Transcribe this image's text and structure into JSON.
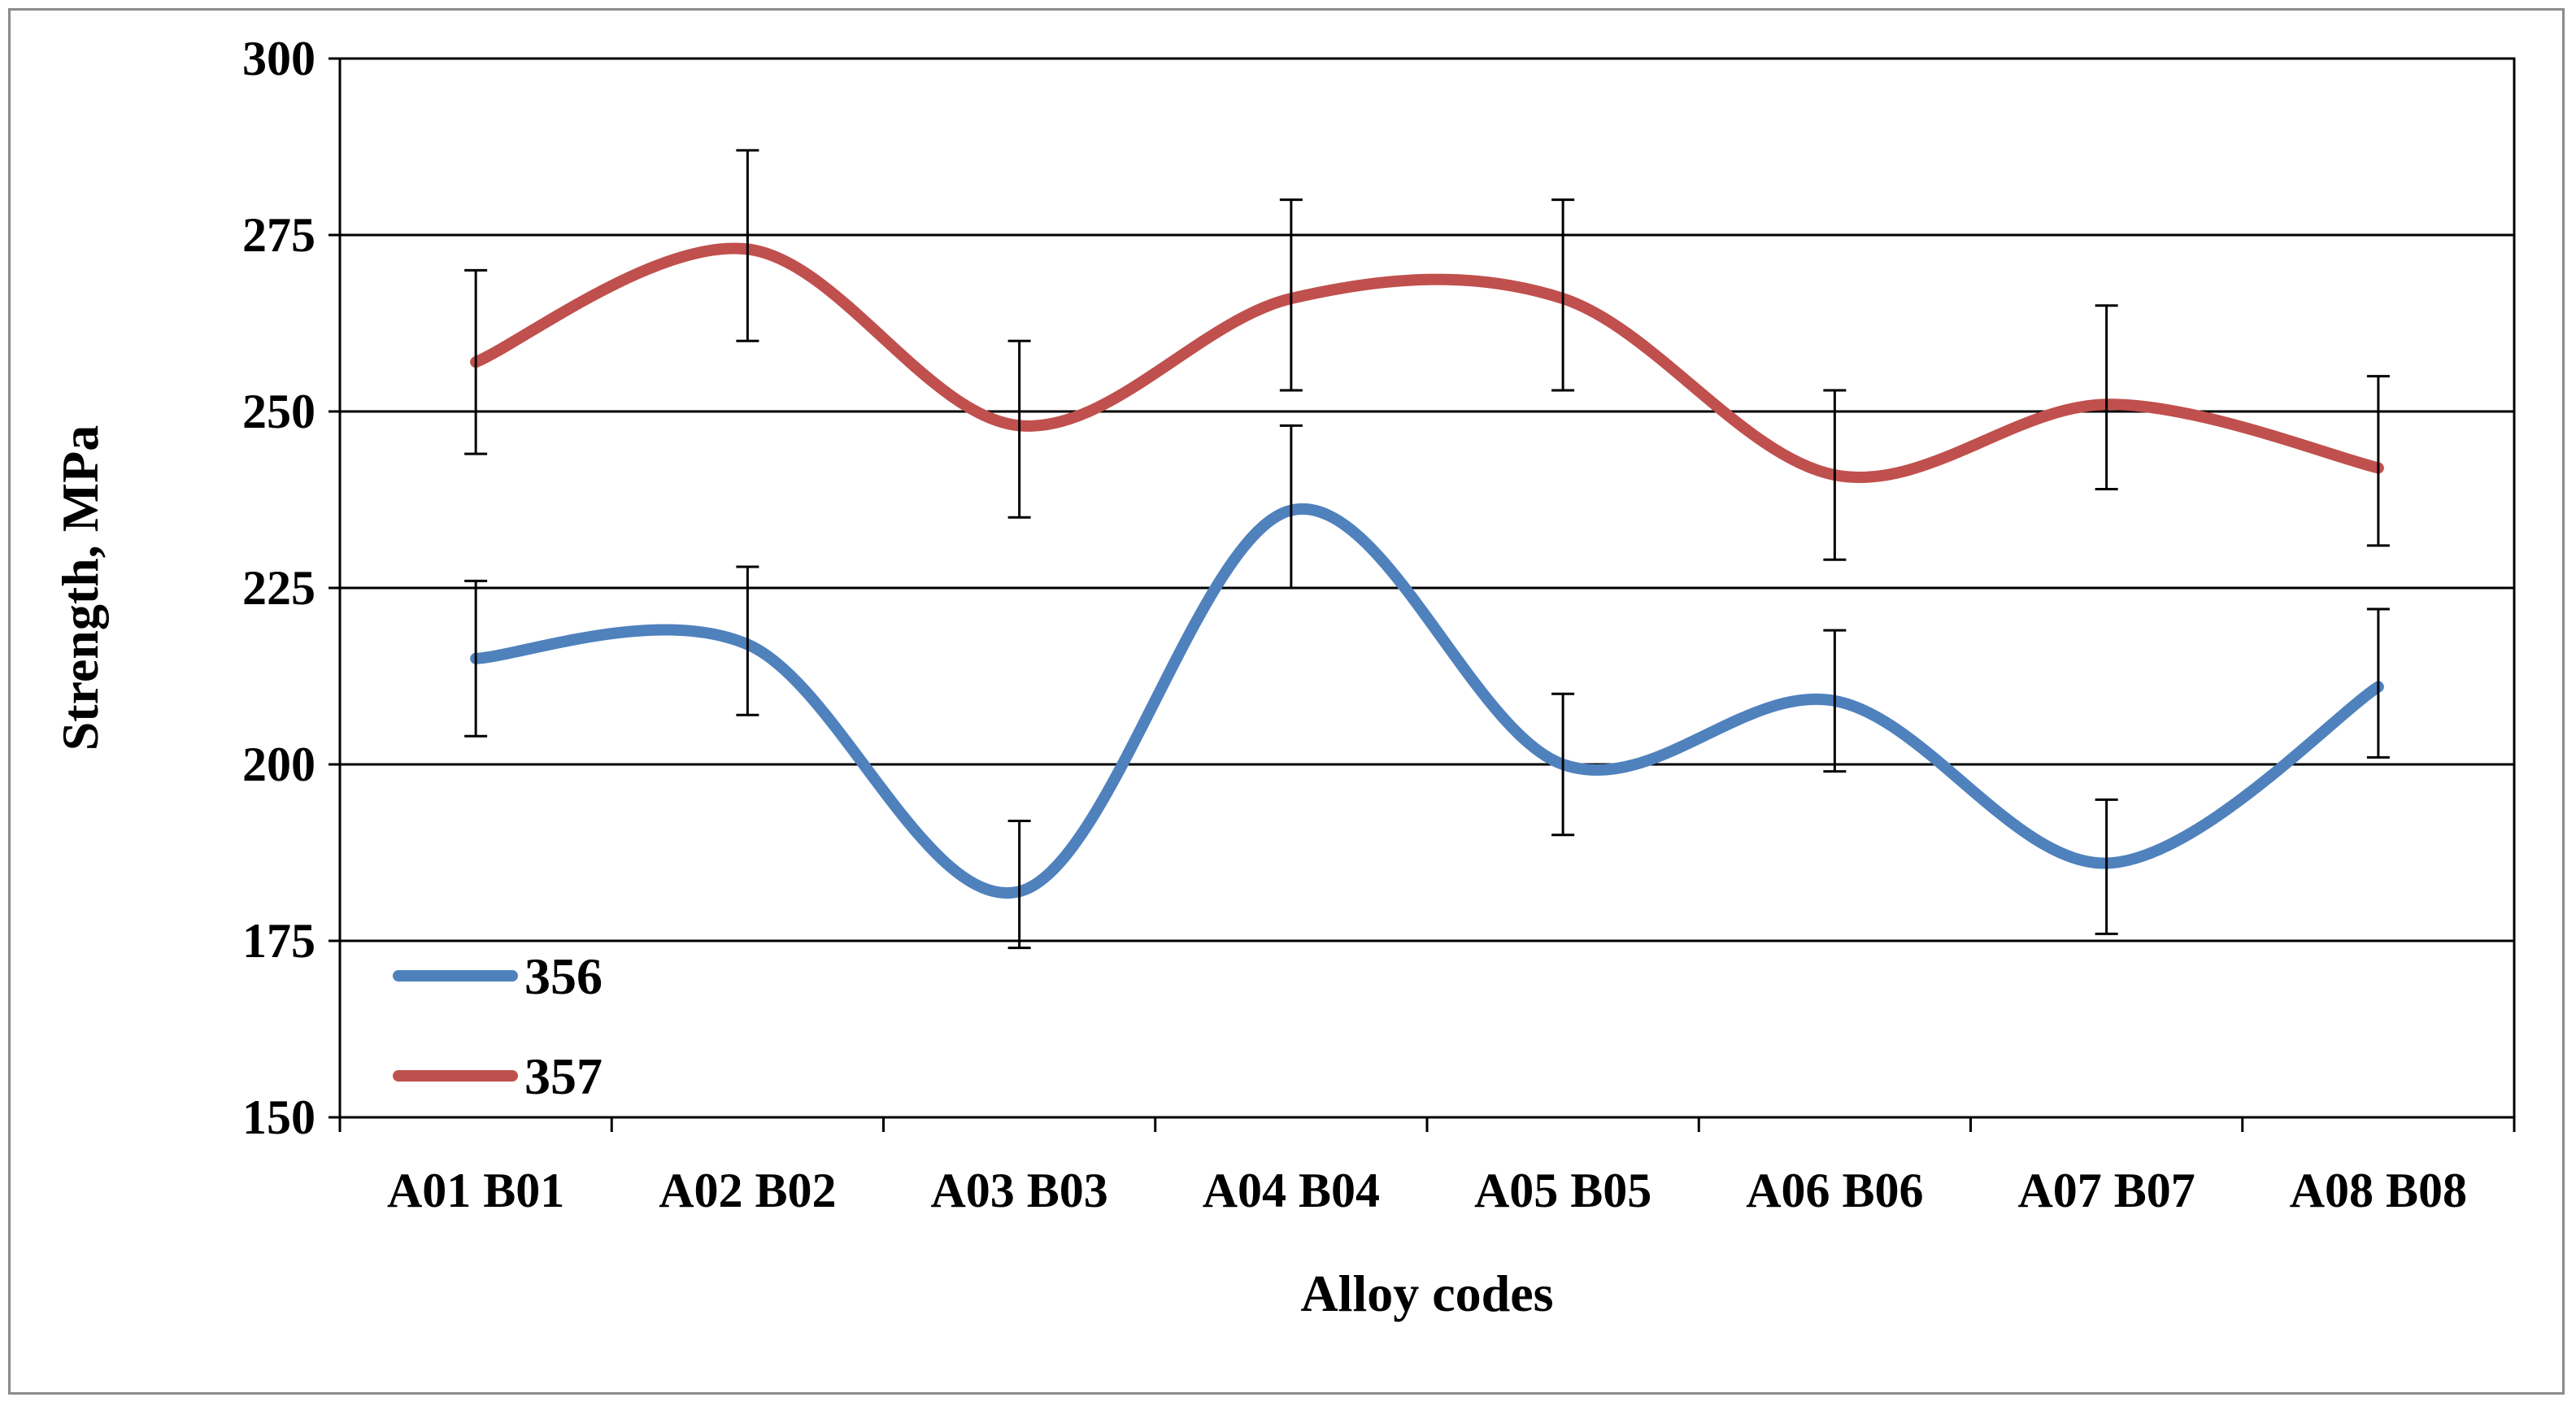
{
  "chart_data": {
    "type": "line",
    "title": "",
    "xlabel": "Alloy codes",
    "ylabel": "Strength, MPa",
    "categories": [
      "A01 B01",
      "A02 B02",
      "A03 B03",
      "A04 B04",
      "A05 B05",
      "A06 B06",
      "A07 B07",
      "A08 B08"
    ],
    "ylim": [
      150,
      300
    ],
    "yticks": [
      "150",
      "175",
      "200",
      "225",
      "250",
      "275",
      "300"
    ],
    "grid": true,
    "smooth": true,
    "legend_position": "bottom-left",
    "series": [
      {
        "name": "356",
        "color": "#4f81bd",
        "values": [
          215,
          217,
          182,
          236,
          200,
          209,
          186,
          211
        ],
        "error_low": [
          204,
          207,
          174,
          225,
          190,
          199,
          176,
          201
        ],
        "error_high": [
          226,
          228,
          192,
          248,
          210,
          219,
          195,
          222
        ]
      },
      {
        "name": "357",
        "color": "#c0504d",
        "values": [
          257,
          273,
          248,
          266,
          266,
          241,
          251,
          242
        ],
        "error_low": [
          244,
          260,
          235,
          253,
          253,
          229,
          239,
          231
        ],
        "error_high": [
          270,
          287,
          260,
          280,
          280,
          253,
          265,
          255
        ]
      }
    ]
  }
}
